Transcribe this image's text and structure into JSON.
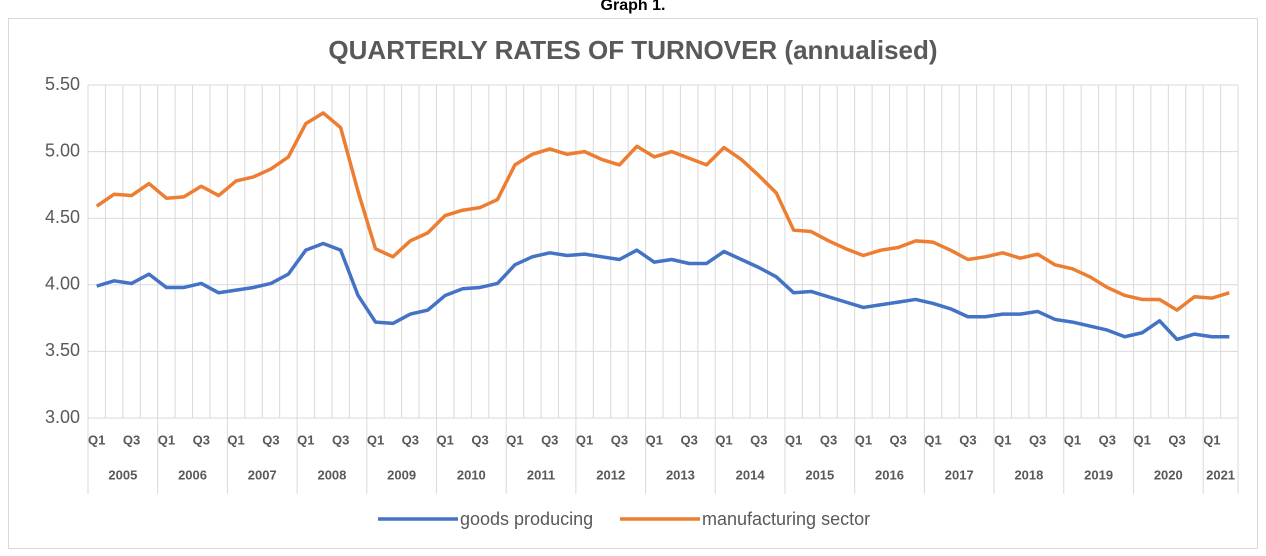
{
  "header": "Graph 1.",
  "chart_data": {
    "type": "line",
    "title": "QUARTERLY RATES OF TURNOVER (annualised)",
    "categories": [
      "Q1",
      null,
      "Q3",
      null,
      "Q1",
      null,
      "Q3",
      null,
      "Q1",
      null,
      "Q3",
      null,
      "Q1",
      null,
      "Q3",
      null,
      "Q1",
      null,
      "Q3",
      null,
      "Q1",
      null,
      "Q3",
      null,
      "Q1",
      null,
      "Q3",
      null,
      "Q1",
      null,
      "Q3",
      null,
      "Q1",
      null,
      "Q3",
      null,
      "Q1",
      null,
      "Q3",
      null,
      "Q1",
      null,
      "Q3",
      null,
      "Q1",
      null,
      "Q3",
      null,
      "Q1",
      null,
      "Q3",
      null,
      "Q1",
      null,
      "Q3",
      null,
      "Q1",
      null,
      "Q3",
      null,
      "Q1",
      null,
      "Q3",
      null,
      "Q1",
      null
    ],
    "years": [
      "2005",
      "2006",
      "2007",
      "2008",
      "2009",
      "2010",
      "2011",
      "2012",
      "2013",
      "2014",
      "2015",
      "2016",
      "2017",
      "2018",
      "2019",
      "2020",
      "2021"
    ],
    "series": [
      {
        "name": "goods producing",
        "color": "#4472c4",
        "values": [
          3.99,
          4.03,
          4.01,
          4.08,
          3.98,
          3.98,
          4.01,
          3.94,
          3.96,
          3.98,
          4.01,
          4.08,
          4.26,
          4.31,
          4.26,
          3.92,
          3.72,
          3.71,
          3.78,
          3.81,
          3.92,
          3.97,
          3.98,
          4.01,
          4.15,
          4.21,
          4.24,
          4.22,
          4.23,
          4.21,
          4.19,
          4.26,
          4.17,
          4.19,
          4.16,
          4.16,
          4.25,
          4.19,
          4.13,
          4.06,
          3.94,
          3.95,
          3.91,
          3.87,
          3.83,
          3.85,
          3.87,
          3.89,
          3.86,
          3.82,
          3.76,
          3.76,
          3.78,
          3.78,
          3.8,
          3.74,
          3.72,
          3.69,
          3.66,
          3.61,
          3.64,
          3.73,
          3.59,
          3.63,
          3.61,
          3.61
        ]
      },
      {
        "name": "manufacturing sector",
        "color": "#ed7d31",
        "values": [
          4.59,
          4.68,
          4.67,
          4.76,
          4.65,
          4.66,
          4.74,
          4.67,
          4.78,
          4.81,
          4.87,
          4.96,
          5.21,
          5.29,
          5.18,
          4.7,
          4.27,
          4.21,
          4.33,
          4.39,
          4.52,
          4.56,
          4.58,
          4.64,
          4.9,
          4.98,
          5.02,
          4.98,
          5.0,
          4.94,
          4.9,
          5.04,
          4.96,
          5.0,
          4.95,
          4.9,
          5.03,
          4.94,
          4.82,
          4.69,
          4.41,
          4.4,
          4.33,
          4.27,
          4.22,
          4.26,
          4.28,
          4.33,
          4.32,
          4.26,
          4.19,
          4.21,
          4.24,
          4.2,
          4.23,
          4.15,
          4.12,
          4.06,
          3.98,
          3.92,
          3.89,
          3.89,
          3.81,
          3.91,
          3.9,
          3.94
        ]
      }
    ],
    "ylim": [
      3,
      5.5
    ],
    "yticks": [
      {
        "value": 3,
        "label": "3.00"
      },
      {
        "value": 3.5,
        "label": "3.50"
      },
      {
        "value": 4,
        "label": "4.00"
      },
      {
        "value": 4.5,
        "label": "4.50"
      },
      {
        "value": 5,
        "label": "5.00"
      },
      {
        "value": 5.5,
        "label": "5.50"
      }
    ],
    "grid": true,
    "legend": "bottom"
  }
}
